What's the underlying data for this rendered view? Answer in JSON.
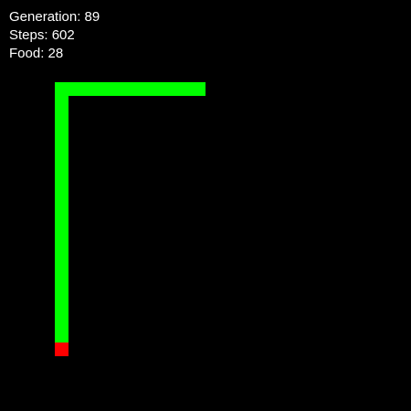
{
  "hud": {
    "generation": "Generation: 89",
    "steps": "Steps: 602",
    "food": "Food: 28"
  },
  "colors": {
    "background": "#000000",
    "snake": "#00ff00",
    "food": "#ff0000",
    "text": "#ffffff"
  }
}
